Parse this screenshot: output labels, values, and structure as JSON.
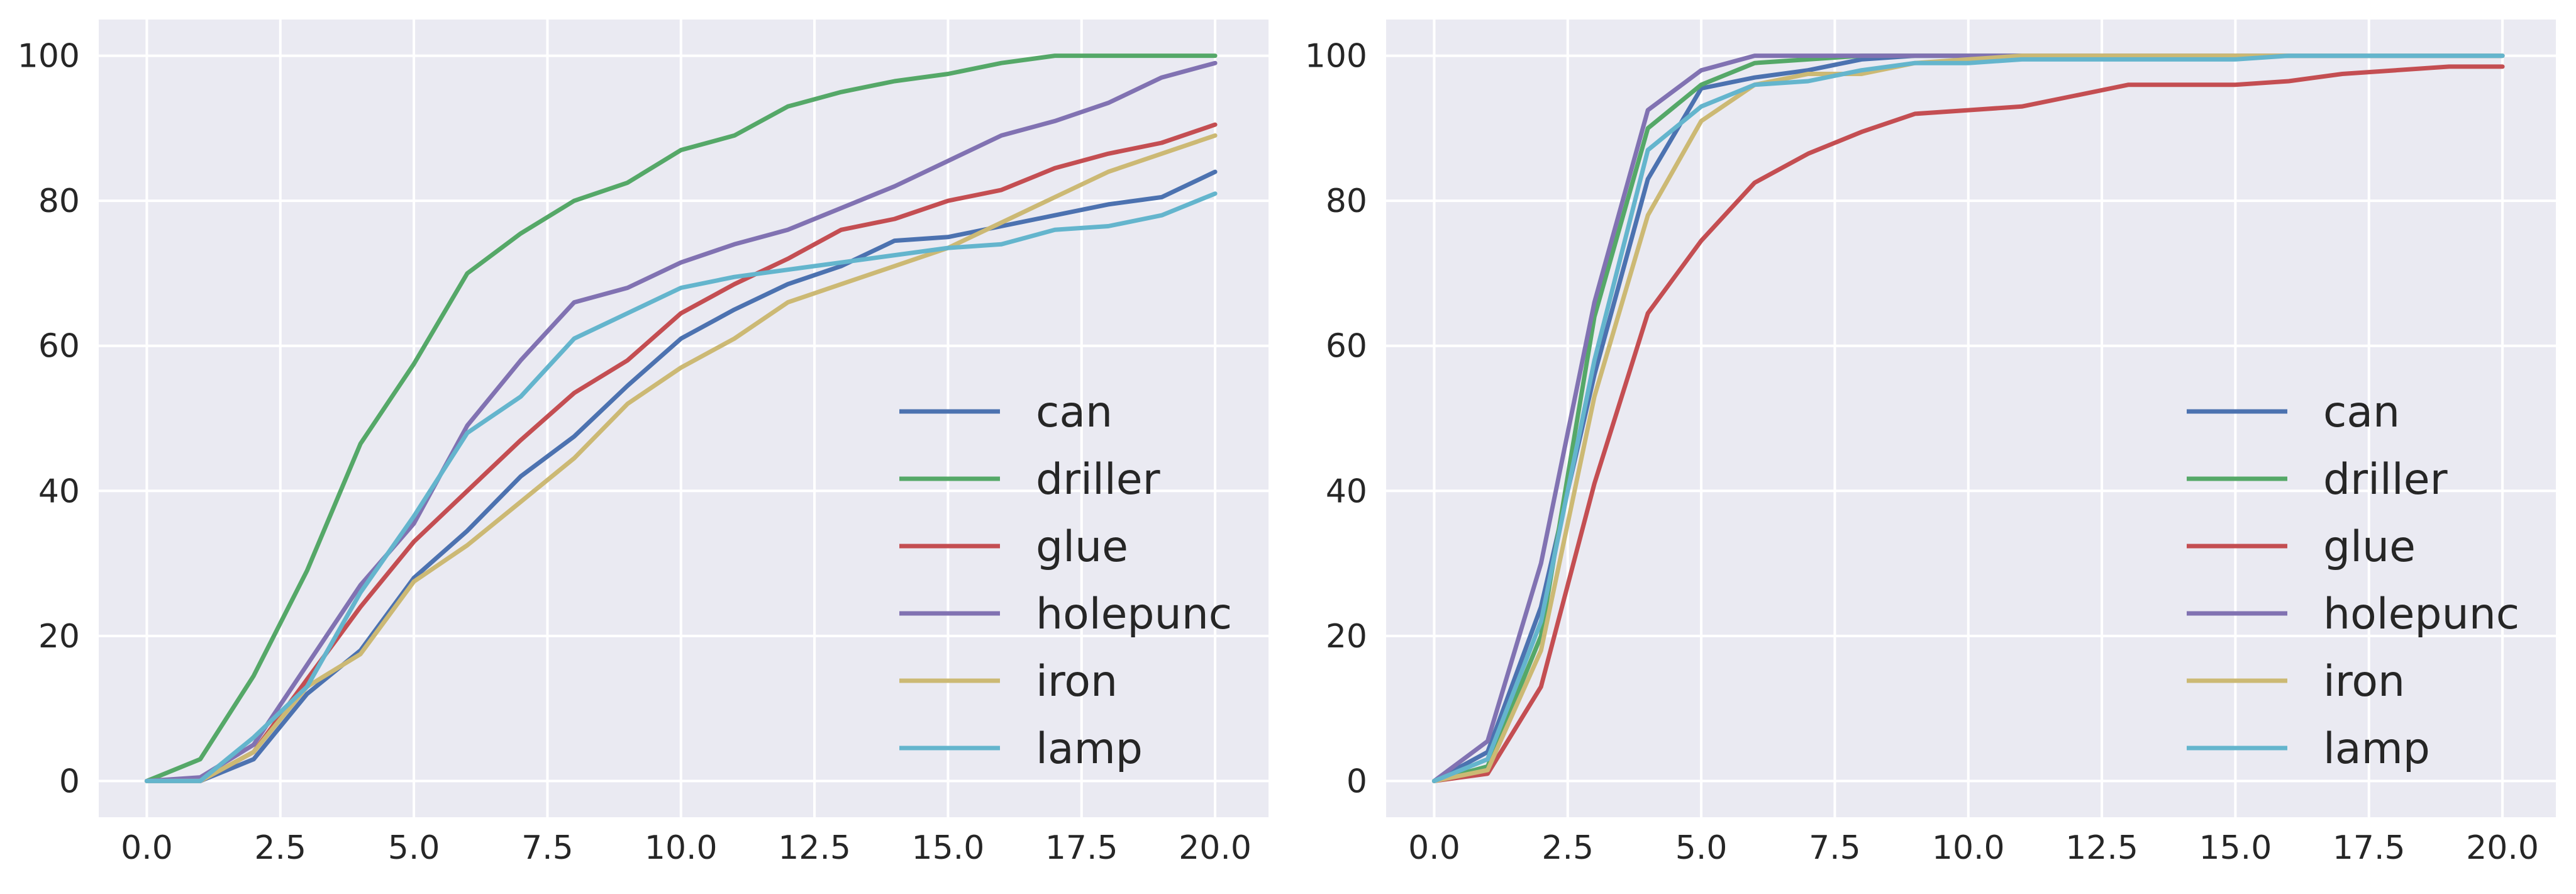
{
  "chart_data": [
    {
      "type": "line",
      "title": "",
      "xlabel": "",
      "ylabel": "",
      "xlim": [
        -0.9,
        21.0
      ],
      "ylim": [
        -5,
        105
      ],
      "xticks": [
        "0.0",
        "2.5",
        "5.0",
        "7.5",
        "10.0",
        "12.5",
        "15.0",
        "17.5",
        "20.0"
      ],
      "yticks": [
        "0",
        "20",
        "40",
        "60",
        "80",
        "100"
      ],
      "grid": true,
      "legend_position": "lower-right",
      "x": [
        0,
        1,
        2,
        3,
        4,
        5,
        6,
        7,
        8,
        9,
        10,
        11,
        12,
        13,
        14,
        15,
        16,
        17,
        18,
        19,
        20
      ],
      "series": [
        {
          "name": "can",
          "color": "#4c72b0",
          "values": [
            0,
            0,
            3,
            12,
            18,
            28,
            34.5,
            42,
            47.5,
            54.5,
            61,
            65,
            68.5,
            71,
            74.5,
            75,
            76.5,
            78,
            79.5,
            80.5,
            84
          ]
        },
        {
          "name": "driller",
          "color": "#55a868",
          "values": [
            0,
            3,
            14.5,
            29,
            46.5,
            57.5,
            70,
            75.5,
            80,
            82.5,
            87,
            89,
            93,
            95,
            96.5,
            97.5,
            99,
            100,
            100,
            100,
            100
          ]
        },
        {
          "name": "glue",
          "color": "#c44e52",
          "values": [
            0,
            0,
            4,
            14,
            24,
            33,
            40,
            47,
            53.5,
            58,
            64.5,
            68.5,
            72,
            76,
            77.5,
            80,
            81.5,
            84.5,
            86.5,
            88,
            90.5
          ]
        },
        {
          "name": "holepunc",
          "color": "#8172b2",
          "values": [
            0,
            0.5,
            5,
            16,
            27,
            35.5,
            49,
            58,
            66,
            68,
            71.5,
            74,
            76,
            79,
            82,
            85.5,
            89,
            91,
            93.5,
            97,
            99
          ]
        },
        {
          "name": "iron",
          "color": "#ccb974",
          "values": [
            0,
            0,
            4,
            13,
            17.5,
            27.5,
            32.5,
            38.5,
            44.5,
            52,
            57,
            61,
            66,
            68.5,
            71,
            73.5,
            77,
            80.5,
            84,
            86.5,
            89
          ]
        },
        {
          "name": "lamp",
          "color": "#64b5cd",
          "values": [
            0,
            0,
            6,
            13,
            26,
            36.5,
            48,
            53,
            61,
            64.5,
            68,
            69.5,
            70.5,
            71.5,
            72.5,
            73.5,
            74,
            76,
            76.5,
            78,
            81
          ]
        }
      ]
    },
    {
      "type": "line",
      "title": "",
      "xlabel": "",
      "ylabel": "",
      "xlim": [
        -0.9,
        21.0
      ],
      "ylim": [
        -5,
        105
      ],
      "xticks": [
        "0.0",
        "2.5",
        "5.0",
        "7.5",
        "10.0",
        "12.5",
        "15.0",
        "17.5",
        "20.0"
      ],
      "yticks": [
        "0",
        "20",
        "40",
        "60",
        "80",
        "100"
      ],
      "grid": true,
      "legend_position": "lower-right",
      "x": [
        0,
        1,
        2,
        3,
        4,
        5,
        6,
        7,
        8,
        9,
        10,
        11,
        12,
        13,
        14,
        15,
        16,
        17,
        18,
        19,
        20
      ],
      "series": [
        {
          "name": "can",
          "color": "#4c72b0",
          "values": [
            0,
            4,
            24,
            56,
            83,
            95.5,
            97,
            98,
            99.5,
            100,
            100,
            100,
            100,
            100,
            100,
            100,
            100,
            100,
            100,
            100,
            100
          ]
        },
        {
          "name": "driller",
          "color": "#55a868",
          "values": [
            0,
            2,
            20,
            64,
            90,
            96,
            99,
            99.5,
            100,
            100,
            100,
            100,
            100,
            100,
            100,
            100,
            100,
            100,
            100,
            100,
            100
          ]
        },
        {
          "name": "glue",
          "color": "#c44e52",
          "values": [
            0,
            1,
            13,
            41,
            64.5,
            74.5,
            82.5,
            86.5,
            89.5,
            92,
            92.5,
            93,
            94.5,
            96,
            96,
            96,
            96.5,
            97.5,
            98,
            98.5,
            98.5
          ]
        },
        {
          "name": "holepunc",
          "color": "#8172b2",
          "values": [
            0,
            5.5,
            30,
            66,
            92.5,
            98,
            100,
            100,
            100,
            100,
            100,
            100,
            100,
            100,
            100,
            100,
            100,
            100,
            100,
            100,
            100
          ]
        },
        {
          "name": "iron",
          "color": "#ccb974",
          "values": [
            0,
            1.5,
            18,
            53,
            78,
            91,
            96,
            97.5,
            97.5,
            99,
            99.5,
            100,
            100,
            100,
            100,
            100,
            100,
            100,
            100,
            100,
            100
          ]
        },
        {
          "name": "lamp",
          "color": "#64b5cd",
          "values": [
            0,
            3,
            22,
            58,
            87,
            93,
            96,
            96.5,
            98,
            99,
            99,
            99.5,
            99.5,
            99.5,
            99.5,
            99.5,
            100,
            100,
            100,
            100,
            100
          ]
        }
      ]
    }
  ]
}
